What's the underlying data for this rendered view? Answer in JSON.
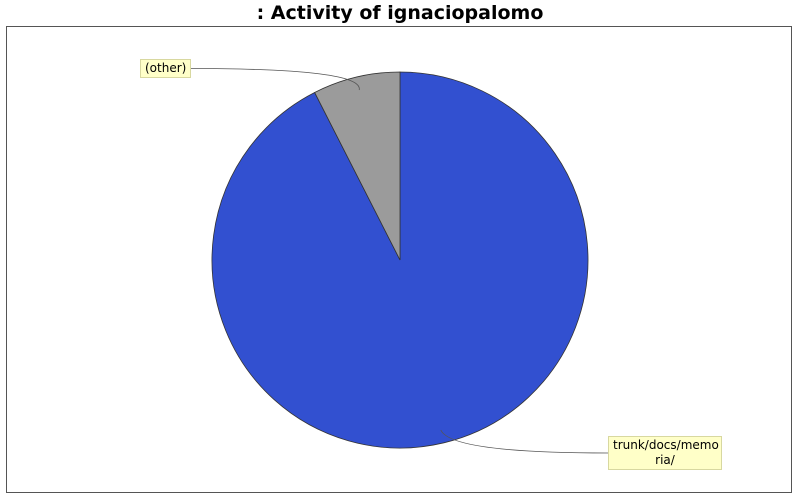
{
  "chart_data": {
    "type": "pie",
    "title": ": Activity of ignaciopalomo",
    "slices": [
      {
        "label": "trunk/docs/memoria/",
        "label_display": "trunk/docs/memo ria/",
        "value": 92.5,
        "color": "#3250d0"
      },
      {
        "label": "(other)",
        "label_display": "(other)",
        "value": 7.5,
        "color": "#9b9b9b"
      }
    ],
    "start_angle_deg": 90,
    "direction": "clockwise",
    "legend": "none"
  }
}
